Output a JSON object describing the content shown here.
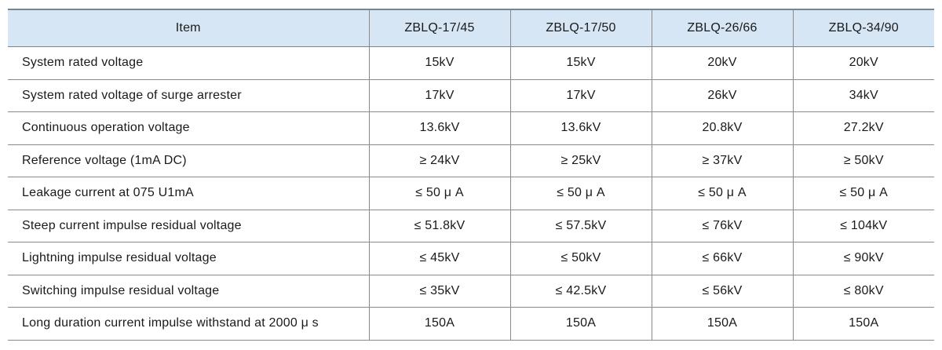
{
  "table": {
    "columns": [
      "Item",
      "ZBLQ-17/45",
      "ZBLQ-17/50",
      "ZBLQ-26/66",
      "ZBLQ-34/90"
    ],
    "rows": [
      {
        "item": "System rated voltage",
        "values": [
          "15kV",
          "15kV",
          "20kV",
          "20kV"
        ]
      },
      {
        "item": "System rated voltage of surge arrester",
        "values": [
          "17kV",
          "17kV",
          "26kV",
          "34kV"
        ]
      },
      {
        "item": "Continuous operation voltage",
        "values": [
          "13.6kV",
          "13.6kV",
          "20.8kV",
          "27.2kV"
        ]
      },
      {
        "item": "Reference voltage (1mA DC)",
        "values": [
          "≥ 24kV",
          "≥ 25kV",
          "≥ 37kV",
          "≥ 50kV"
        ]
      },
      {
        "item": "Leakage current at 075 U1mA",
        "values": [
          "≤ 50 μ A",
          "≤ 50 μ A",
          "≤ 50 μ A",
          "≤ 50 μ A"
        ]
      },
      {
        "item": "Steep current impulse residual voltage",
        "values": [
          "≤ 51.8kV",
          "≤ 57.5kV",
          "≤ 76kV",
          "≤ 104kV"
        ]
      },
      {
        "item": "Lightning impulse residual voltage",
        "values": [
          "≤ 45kV",
          "≤ 50kV",
          "≤ 66kV",
          "≤ 90kV"
        ]
      },
      {
        "item": "Switching impulse residual voltage",
        "values": [
          "≤ 35kV",
          "≤ 42.5kV",
          "≤ 56kV",
          "≤ 80kV"
        ]
      },
      {
        "item": "Long duration current impulse withstand at 2000 μ s",
        "values": [
          "150A",
          "150A",
          "150A",
          "150A"
        ]
      }
    ],
    "colors": {
      "header_bg": "#d7e6f4",
      "rule": "#8a8a8a",
      "text": "#1a1a1a"
    }
  }
}
